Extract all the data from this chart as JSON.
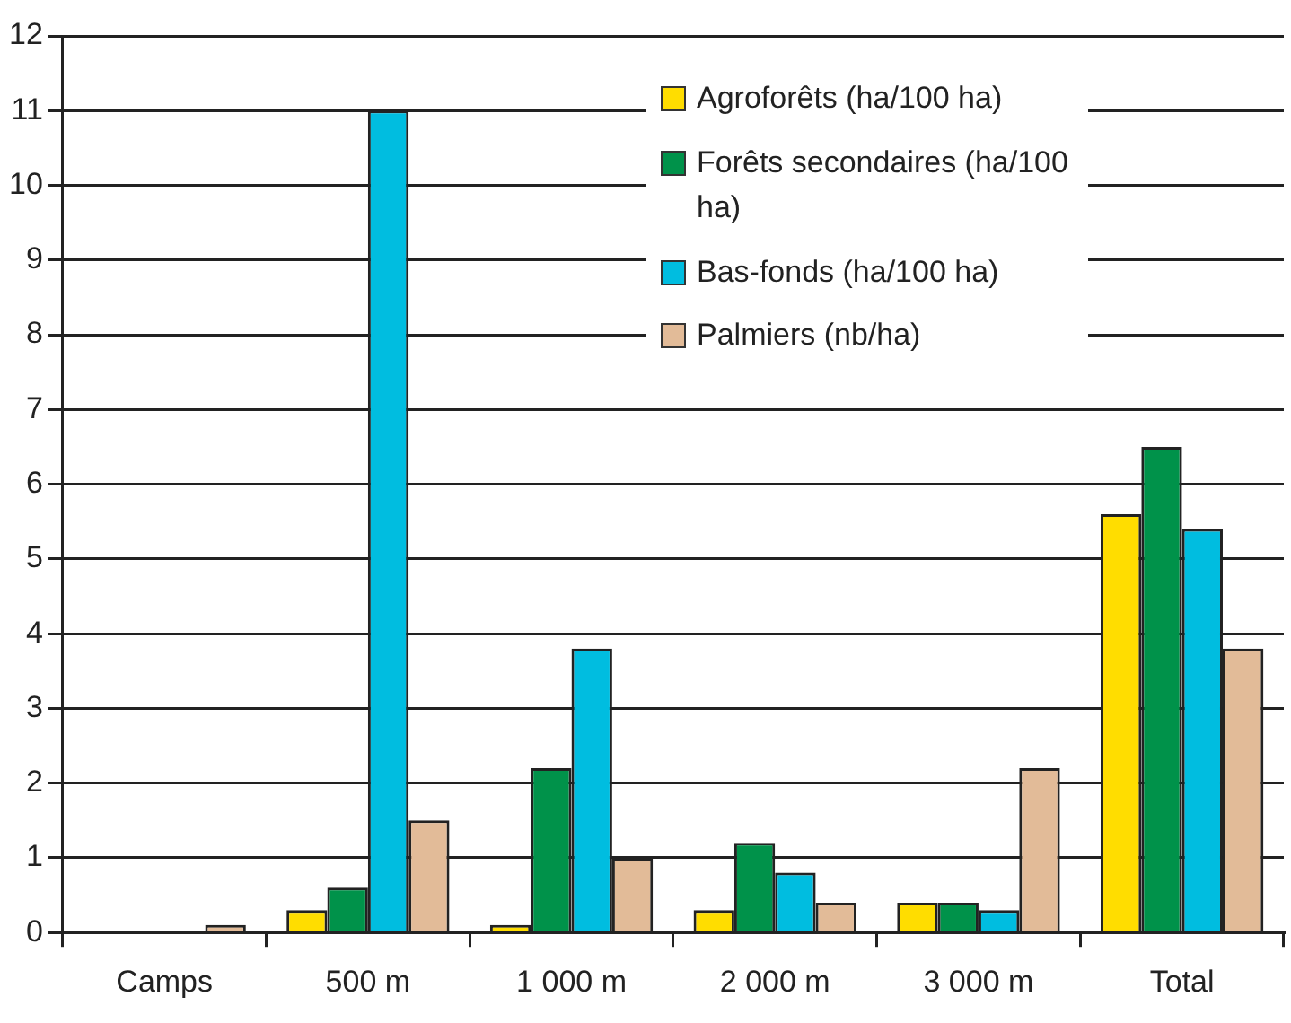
{
  "chart_data": {
    "type": "bar",
    "categories": [
      "Camps",
      "500 m",
      "1 000 m",
      "2 000 m",
      "3 000 m",
      "Total"
    ],
    "series": [
      {
        "name": "Agroforêts (ha/100 ha)",
        "color": "#ffdd00",
        "values": [
          0,
          0.3,
          0.1,
          0.3,
          0.4,
          5.6
        ]
      },
      {
        "name": "Forêts secondaires (ha/100 ha)",
        "color": "#00924a",
        "values": [
          0,
          0.6,
          2.2,
          1.2,
          0.4,
          6.5
        ]
      },
      {
        "name": "Bas-fonds (ha/100 ha)",
        "color": "#00bde0",
        "values": [
          0,
          11,
          3.8,
          0.8,
          0.3,
          5.4
        ]
      },
      {
        "name": "Palmiers (nb/ha)",
        "color": "#e2bb98",
        "values": [
          0.1,
          1.5,
          1.0,
          0.4,
          2.2,
          3.8
        ]
      }
    ],
    "ylim": [
      0,
      12
    ],
    "yticks": [
      0,
      1,
      2,
      3,
      4,
      5,
      6,
      7,
      8,
      9,
      10,
      11,
      12
    ],
    "grid": "y",
    "legend": "top right"
  }
}
